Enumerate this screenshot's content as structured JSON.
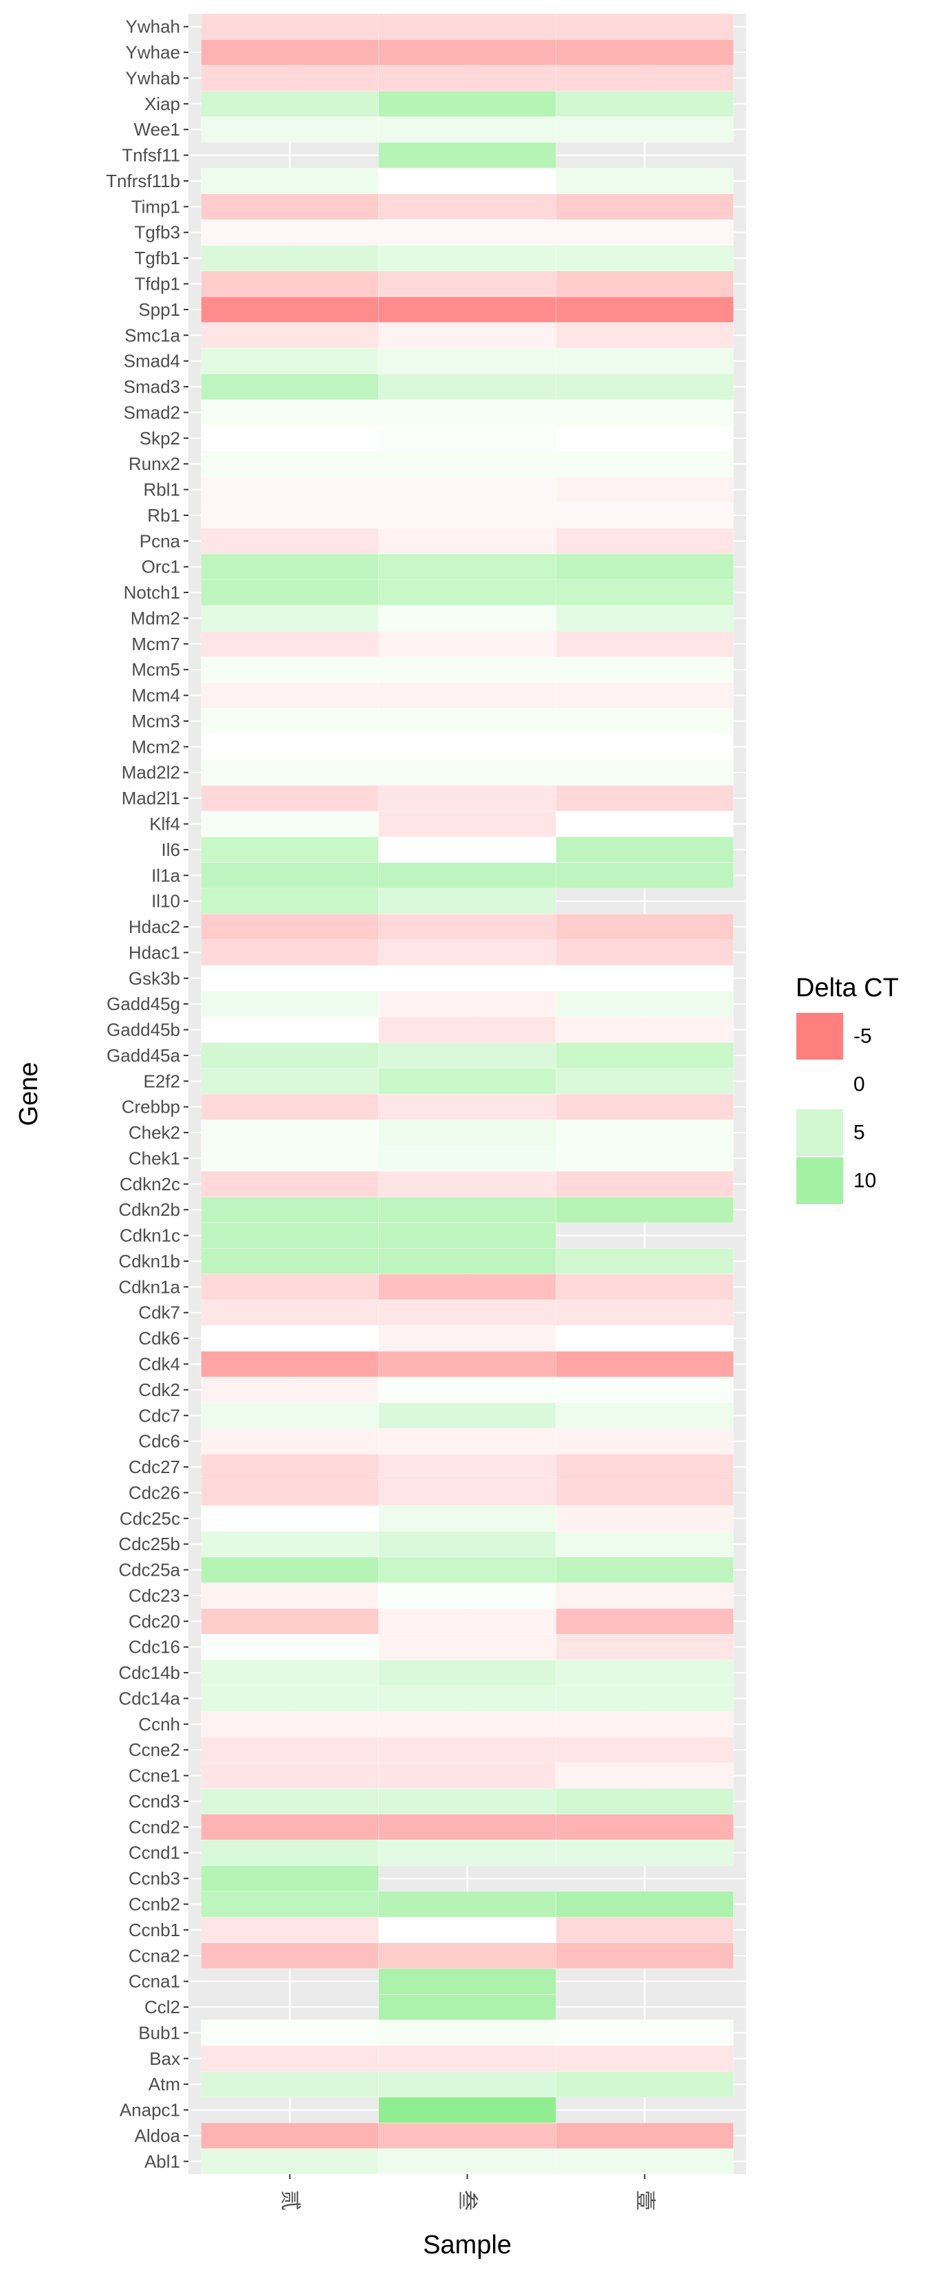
{
  "chart_data": {
    "type": "heatmap",
    "title": "",
    "xlabel": "Sample",
    "ylabel": "Gene",
    "grid": true,
    "legend_placement": "right",
    "legend_title": "Delta CT",
    "legend_breaks": [
      -5,
      0,
      5,
      10
    ],
    "legend_labels": [
      "-5",
      "0",
      "5",
      "10"
    ],
    "color_low": "#ff7f7f",
    "color_mid": "#ffffff",
    "color_high": "#90ee90",
    "panel_background": "#ebebeb",
    "samples": [
      "贰",
      "叁",
      "壹"
    ],
    "genes": [
      "Abl1",
      "Aldoa",
      "Anapc1",
      "Atm",
      "Bax",
      "Bub1",
      "Ccl2",
      "Ccna1",
      "Ccna2",
      "Ccnb1",
      "Ccnb2",
      "Ccnb3",
      "Ccnd1",
      "Ccnd2",
      "Ccnd3",
      "Ccne1",
      "Ccne2",
      "Ccnh",
      "Cdc14a",
      "Cdc14b",
      "Cdc16",
      "Cdc20",
      "Cdc23",
      "Cdc25a",
      "Cdc25b",
      "Cdc25c",
      "Cdc26",
      "Cdc27",
      "Cdc6",
      "Cdc7",
      "Cdk2",
      "Cdk4",
      "Cdk6",
      "Cdk7",
      "Cdkn1a",
      "Cdkn1b",
      "Cdkn1c",
      "Cdkn2b",
      "Cdkn2c",
      "Chek1",
      "Chek2",
      "Crebbp",
      "E2f2",
      "Gadd45a",
      "Gadd45b",
      "Gadd45g",
      "Gsk3b",
      "Hdac1",
      "Hdac2",
      "Il10",
      "Il1a",
      "Il6",
      "Klf4",
      "Mad2l1",
      "Mad2l2",
      "Mcm2",
      "Mcm3",
      "Mcm4",
      "Mcm5",
      "Mcm7",
      "Mdm2",
      "Notch1",
      "Orc1",
      "Pcna",
      "Rb1",
      "Rbl1",
      "Runx2",
      "Skp2",
      "Smad2",
      "Smad3",
      "Smad4",
      "Smc1a",
      "Spp1",
      "Tfdp1",
      "Tgfb1",
      "Tgfb3",
      "Timp1",
      "Tnfrsf11b",
      "Tnfsf11",
      "Wee1",
      "Xiap",
      "Ywhab",
      "Ywhae",
      "Ywhah"
    ],
    "values": [
      [
        3.0,
        2.0,
        2.0
      ],
      [
        -3.0,
        -2.5,
        -3.0
      ],
      [
        null,
        12.0,
        null
      ],
      [
        4.0,
        4.0,
        5.0
      ],
      [
        -1.0,
        -1.0,
        -1.0
      ],
      [
        0.5,
        1.0,
        0.5
      ],
      [
        null,
        9.0,
        null
      ],
      [
        null,
        9.0,
        null
      ],
      [
        -2.5,
        -2.0,
        -2.5
      ],
      [
        -1.0,
        0.0,
        -1.5
      ],
      [
        7.0,
        8.0,
        9.0
      ],
      [
        8.0,
        null,
        null
      ],
      [
        4.0,
        3.0,
        3.0
      ],
      [
        -3.0,
        -3.0,
        -3.0
      ],
      [
        4.0,
        4.0,
        5.0
      ],
      [
        -1.0,
        -1.0,
        -0.5
      ],
      [
        -1.0,
        -1.0,
        -1.0
      ],
      [
        -0.5,
        -0.5,
        -0.5
      ],
      [
        3.0,
        3.0,
        3.0
      ],
      [
        3.0,
        4.0,
        3.0
      ],
      [
        0.5,
        -0.5,
        -1.0
      ],
      [
        -2.0,
        -0.5,
        -2.5
      ],
      [
        -0.5,
        0.5,
        -0.5
      ],
      [
        8.0,
        6.0,
        7.0
      ],
      [
        3.0,
        4.0,
        2.0
      ],
      [
        0.0,
        2.0,
        -0.5
      ],
      [
        -1.5,
        -1.0,
        -1.5
      ],
      [
        -1.5,
        -1.0,
        -1.5
      ],
      [
        -0.5,
        -0.5,
        -0.5
      ],
      [
        2.0,
        4.0,
        2.0
      ],
      [
        -0.5,
        0.5,
        0.5
      ],
      [
        -3.5,
        -3.0,
        -3.5
      ],
      [
        0.0,
        -0.5,
        0.0
      ],
      [
        -1.0,
        -1.0,
        -1.0
      ],
      [
        -1.5,
        -2.5,
        -1.5
      ],
      [
        7.0,
        7.0,
        5.0
      ],
      [
        7.0,
        7.0,
        null
      ],
      [
        7.0,
        7.0,
        8.0
      ],
      [
        -1.5,
        -1.0,
        -1.5
      ],
      [
        1.0,
        1.5,
        1.0
      ],
      [
        1.0,
        2.0,
        1.0
      ],
      [
        -1.5,
        -1.0,
        -1.5
      ],
      [
        4.0,
        6.0,
        4.0
      ],
      [
        5.0,
        4.0,
        6.0
      ],
      [
        0.0,
        -1.0,
        -0.5
      ],
      [
        2.0,
        -0.5,
        2.0
      ],
      [
        0.0,
        0.0,
        0.0
      ],
      [
        -1.5,
        -1.0,
        -1.5
      ],
      [
        -2.0,
        -1.5,
        -2.0
      ],
      [
        6.0,
        4.0,
        null
      ],
      [
        7.0,
        7.0,
        7.0
      ],
      [
        6.0,
        0.0,
        7.0
      ],
      [
        1.0,
        -1.0,
        0.0
      ],
      [
        -1.5,
        -1.0,
        -1.5
      ],
      [
        1.0,
        1.0,
        1.0
      ],
      [
        0.0,
        0.0,
        0.0
      ],
      [
        1.0,
        1.0,
        1.0
      ],
      [
        -0.5,
        -0.5,
        -0.5
      ],
      [
        1.0,
        1.0,
        1.0
      ],
      [
        -1.0,
        -0.5,
        -1.0
      ],
      [
        3.0,
        1.0,
        3.0
      ],
      [
        7.0,
        6.0,
        6.0
      ],
      [
        7.0,
        6.0,
        7.0
      ],
      [
        -1.0,
        -0.5,
        -1.0
      ],
      [
        -0.3,
        -0.3,
        -0.3
      ],
      [
        -0.3,
        -0.3,
        -0.5
      ],
      [
        1.0,
        1.0,
        1.0
      ],
      [
        0.0,
        0.5,
        0.0
      ],
      [
        1.0,
        1.0,
        1.0
      ],
      [
        7.0,
        4.0,
        4.0
      ],
      [
        3.0,
        2.0,
        2.0
      ],
      [
        -1.0,
        -0.5,
        -1.0
      ],
      [
        -4.5,
        -4.5,
        -4.5
      ],
      [
        -2.0,
        -1.5,
        -2.0
      ],
      [
        4.0,
        3.0,
        3.0
      ],
      [
        -0.3,
        -0.3,
        -0.3
      ],
      [
        -2.0,
        -1.5,
        -2.0
      ],
      [
        2.0,
        0.0,
        2.0
      ],
      [
        null,
        8.0,
        null
      ],
      [
        2.0,
        2.0,
        2.0
      ],
      [
        5.0,
        8.0,
        5.0
      ],
      [
        -1.5,
        -1.5,
        -1.5
      ],
      [
        -3.0,
        -3.0,
        -3.0
      ],
      [
        -1.5,
        -1.5,
        -1.5
      ]
    ]
  }
}
